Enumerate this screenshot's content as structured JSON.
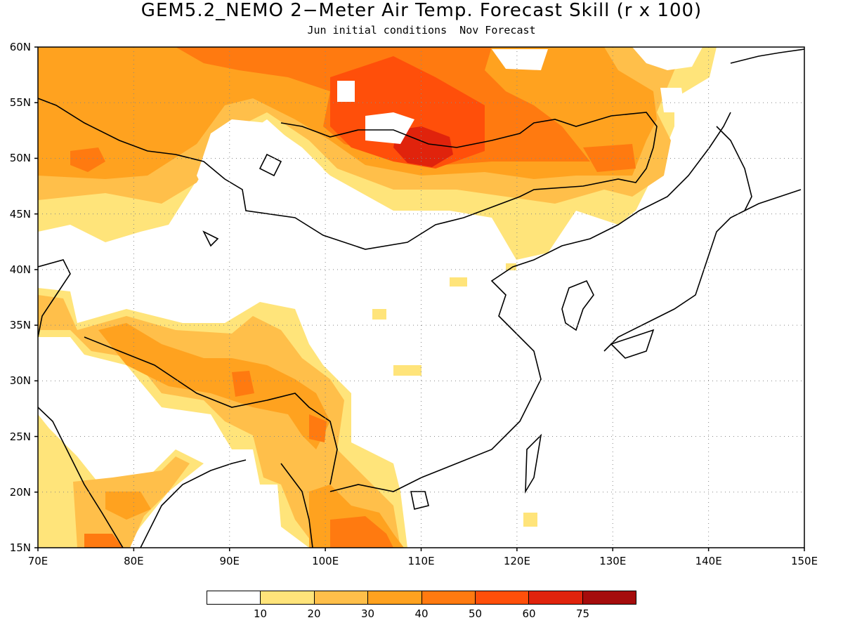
{
  "title": "GEM5.2_NEMO 2−Meter Air Temp. Forecast Skill (r x 100)",
  "subtitle": "Jun initial conditions  Nov Forecast",
  "lat_ticks": [
    "15N",
    "20N",
    "25N",
    "30N",
    "35N",
    "40N",
    "45N",
    "50N",
    "55N",
    "60N"
  ],
  "lon_ticks": [
    "70E",
    "80E",
    "90E",
    "100E",
    "110E",
    "120E",
    "130E",
    "140E",
    "150E"
  ],
  "legend": {
    "colors": [
      "#ffffff",
      "#ffe47a",
      "#ffbf4a",
      "#ffa21f",
      "#ff7a10",
      "#ff4f0a",
      "#e0230c",
      "#a50c0c"
    ],
    "labels": [
      "10",
      "20",
      "30",
      "40",
      "50",
      "60",
      "75"
    ]
  },
  "map_extent": {
    "lon": [
      70,
      150
    ],
    "lat": [
      15,
      60
    ]
  }
}
